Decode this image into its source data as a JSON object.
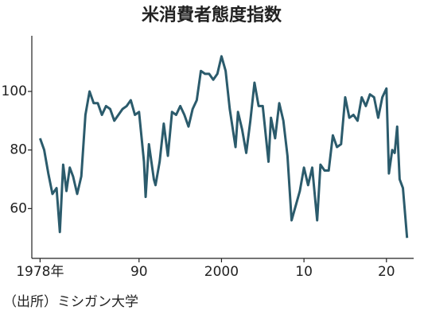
{
  "chart_data": {
    "type": "line",
    "title": "米消費者態度指数",
    "source": "（出所）ミシガン大学",
    "color": "#2b5b6c",
    "xlim": [
      1977,
      2023.3
    ],
    "ylim": [
      43,
      119
    ],
    "xticks": [
      {
        "value": 1978,
        "label": "1978年"
      },
      {
        "value": 1990,
        "label": "90"
      },
      2000,
      {
        "value": 2010,
        "label": "10"
      },
      {
        "value": 2020,
        "label": "20"
      }
    ],
    "yticks": [
      60,
      80,
      100
    ],
    "x": [
      1978.0,
      1978.5,
      1979.0,
      1979.5,
      1980.0,
      1980.4,
      1980.8,
      1981.2,
      1981.6,
      1982.0,
      1982.5,
      1983.0,
      1983.5,
      1984.0,
      1984.5,
      1985.0,
      1985.5,
      1986.0,
      1986.5,
      1987.0,
      1987.5,
      1988.0,
      1988.5,
      1989.0,
      1989.5,
      1990.0,
      1990.6,
      1990.8,
      1991.2,
      1991.8,
      1992.0,
      1992.5,
      1993.0,
      1993.5,
      1994.0,
      1994.5,
      1995.0,
      1995.5,
      1996.0,
      1996.5,
      1997.0,
      1997.5,
      1998.0,
      1998.5,
      1999.0,
      1999.5,
      2000.0,
      2000.5,
      2001.0,
      2001.7,
      2002.0,
      2002.5,
      2003.0,
      2003.5,
      2004.0,
      2004.5,
      2005.0,
      2005.7,
      2006.0,
      2006.5,
      2007.0,
      2007.5,
      2008.0,
      2008.5,
      2009.0,
      2009.5,
      2010.0,
      2010.5,
      2011.0,
      2011.6,
      2012.0,
      2012.5,
      2013.0,
      2013.5,
      2014.0,
      2014.5,
      2015.0,
      2015.5,
      2016.0,
      2016.5,
      2017.0,
      2017.5,
      2018.0,
      2018.5,
      2019.0,
      2019.5,
      2020.0,
      2020.3,
      2020.7,
      2021.0,
      2021.3,
      2021.6,
      2022.0,
      2022.5
    ],
    "values": [
      84,
      80,
      72,
      65,
      67,
      52,
      75,
      66,
      74,
      71,
      65,
      71,
      92,
      100,
      96,
      96,
      92,
      95,
      94,
      90,
      92,
      94,
      95,
      97,
      92,
      93,
      76,
      64,
      82,
      70,
      68,
      76,
      89,
      78,
      93,
      92,
      95,
      92,
      88,
      94,
      97,
      107,
      106,
      106,
      104,
      106,
      112,
      107,
      94,
      81,
      93,
      87,
      79,
      90,
      103,
      95,
      95,
      76,
      91,
      84,
      96,
      90,
      78,
      56,
      61,
      66,
      74,
      68,
      74,
      56,
      75,
      73,
      73,
      85,
      81,
      82,
      98,
      91,
      92,
      90,
      98,
      95,
      99,
      98,
      91,
      98,
      101,
      72,
      80,
      79,
      88,
      70,
      67,
      50
    ]
  }
}
